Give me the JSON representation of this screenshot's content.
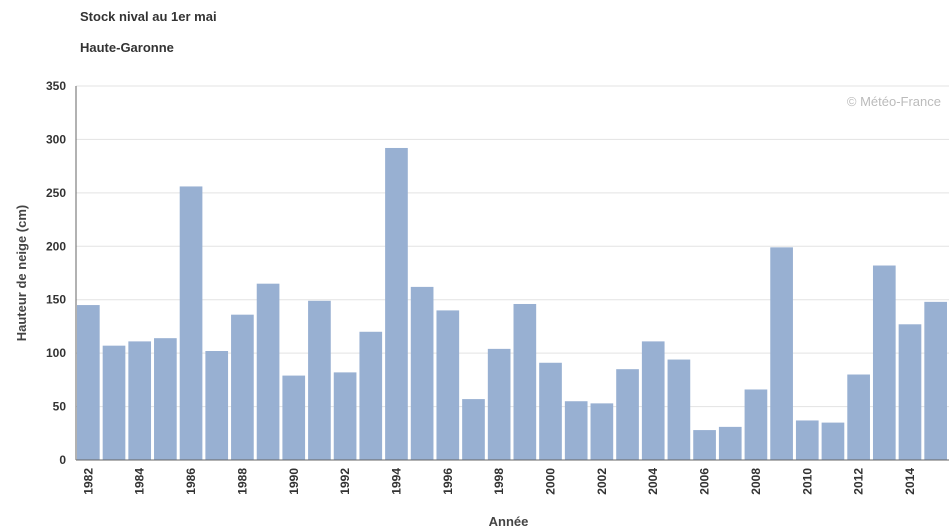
{
  "chart_data": {
    "type": "bar",
    "title": "Stock nival au 1er mai",
    "subtitle": "Haute-Garonne",
    "xlabel": "Année",
    "ylabel": "Hauteur de neige (cm)",
    "credit": "© Météo-France",
    "ylim": [
      0,
      350
    ],
    "yticks": [
      0,
      50,
      100,
      150,
      200,
      250,
      300,
      350
    ],
    "categories": [
      "1982",
      "1983",
      "1984",
      "1985",
      "1986",
      "1987",
      "1988",
      "1989",
      "1990",
      "1991",
      "1992",
      "1993",
      "1994",
      "1995",
      "1996",
      "1997",
      "1998",
      "1999",
      "2000",
      "2001",
      "2002",
      "2003",
      "2004",
      "2005",
      "2006",
      "2007",
      "2008",
      "2009",
      "2010",
      "2011",
      "2012",
      "2013",
      "2014",
      "2015"
    ],
    "x_tick_labels": [
      "1982",
      "",
      "1984",
      "",
      "1986",
      "",
      "1988",
      "",
      "1990",
      "",
      "1992",
      "",
      "1994",
      "",
      "1996",
      "",
      "1998",
      "",
      "2000",
      "",
      "2002",
      "",
      "2004",
      "",
      "2006",
      "",
      "2008",
      "",
      "2010",
      "",
      "2012",
      "",
      "2014",
      ""
    ],
    "values": [
      145,
      107,
      111,
      114,
      256,
      102,
      136,
      165,
      79,
      149,
      82,
      120,
      292,
      162,
      140,
      57,
      104,
      146,
      91,
      55,
      53,
      85,
      111,
      94,
      28,
      31,
      66,
      199,
      37,
      35,
      80,
      182,
      127,
      148
    ],
    "bar_color": "#98b0d2",
    "grid": true,
    "legend": "none"
  }
}
